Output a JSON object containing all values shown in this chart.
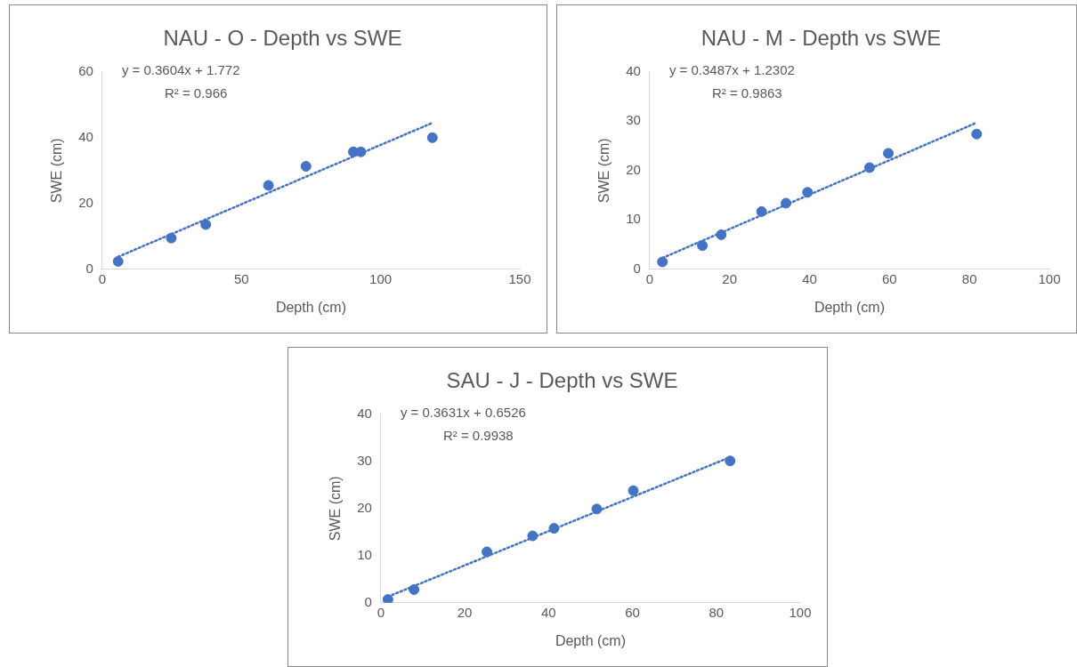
{
  "chart_data": [
    {
      "type": "scatter",
      "title": "NAU - O - Depth vs SWE",
      "xlabel": "Depth (cm)",
      "ylabel": "SWE (cm)",
      "annotations": [
        "y = 0.3604x + 1.772",
        "R² = 0.966"
      ],
      "xlim": [
        0,
        150
      ],
      "xticks": [
        0,
        50,
        100,
        150
      ],
      "ylim": [
        0,
        60
      ],
      "yticks": [
        0,
        20,
        40,
        60
      ],
      "grid": false,
      "legend": false,
      "marker": "circle",
      "series": [
        {
          "type": "scatter",
          "color": "#4472c4",
          "x": [
            5.7,
            24.8,
            37.2,
            59.7,
            73.2,
            90.2,
            92.9,
            118.6
          ],
          "values": [
            2.4,
            9.5,
            13.6,
            25.5,
            31.3,
            35.7,
            35.7,
            40.0
          ]
        },
        {
          "type": "line",
          "color": "#4472c4",
          "line_style": "dotted",
          "marker": "none",
          "x": [
            5.7,
            118.6
          ],
          "values": [
            3.8,
            44.5
          ]
        }
      ]
    },
    {
      "type": "scatter",
      "title": "NAU - M - Depth vs SWE",
      "xlabel": "Depth (cm)",
      "ylabel": "SWE (cm)",
      "annotations": [
        "y = 0.3487x + 1.2302",
        "R² = 0.9863"
      ],
      "xlim": [
        0,
        100
      ],
      "xticks": [
        0,
        20,
        40,
        60,
        80,
        100
      ],
      "ylim": [
        0,
        40
      ],
      "yticks": [
        0,
        10,
        20,
        30,
        40
      ],
      "grid": false,
      "legend": false,
      "marker": "circle",
      "series": [
        {
          "type": "scatter",
          "color": "#4472c4",
          "x": [
            3.2,
            13.2,
            17.9,
            28.0,
            34.1,
            39.5,
            55.0,
            59.7,
            81.8
          ],
          "values": [
            1.5,
            4.8,
            7.0,
            11.7,
            13.4,
            15.6,
            20.6,
            23.5,
            27.4
          ]
        },
        {
          "type": "line",
          "color": "#4472c4",
          "line_style": "dotted",
          "marker": "none",
          "x": [
            3.2,
            81.8
          ],
          "values": [
            2.3,
            29.7
          ]
        }
      ]
    },
    {
      "type": "scatter",
      "title": "SAU - J - Depth vs SWE",
      "xlabel": "Depth (cm)",
      "ylabel": "SWE (cm)",
      "annotations": [
        "y = 0.3631x + 0.6526",
        "R² = 0.9938"
      ],
      "xlim": [
        0,
        100
      ],
      "xticks": [
        0,
        20,
        40,
        60,
        80,
        100
      ],
      "ylim": [
        0,
        40
      ],
      "yticks": [
        0,
        10,
        20,
        30,
        40
      ],
      "grid": false,
      "legend": false,
      "marker": "circle",
      "series": [
        {
          "type": "scatter",
          "color": "#4472c4",
          "x": [
            1.7,
            7.9,
            25.3,
            36.2,
            41.3,
            51.5,
            60.2,
            83.3
          ],
          "values": [
            0.7,
            2.8,
            10.8,
            14.2,
            15.8,
            19.9,
            23.8,
            30.1
          ]
        },
        {
          "type": "line",
          "color": "#4472c4",
          "line_style": "dotted",
          "marker": "none",
          "x": [
            1.7,
            83.3
          ],
          "values": [
            1.3,
            30.9
          ]
        }
      ]
    }
  ]
}
